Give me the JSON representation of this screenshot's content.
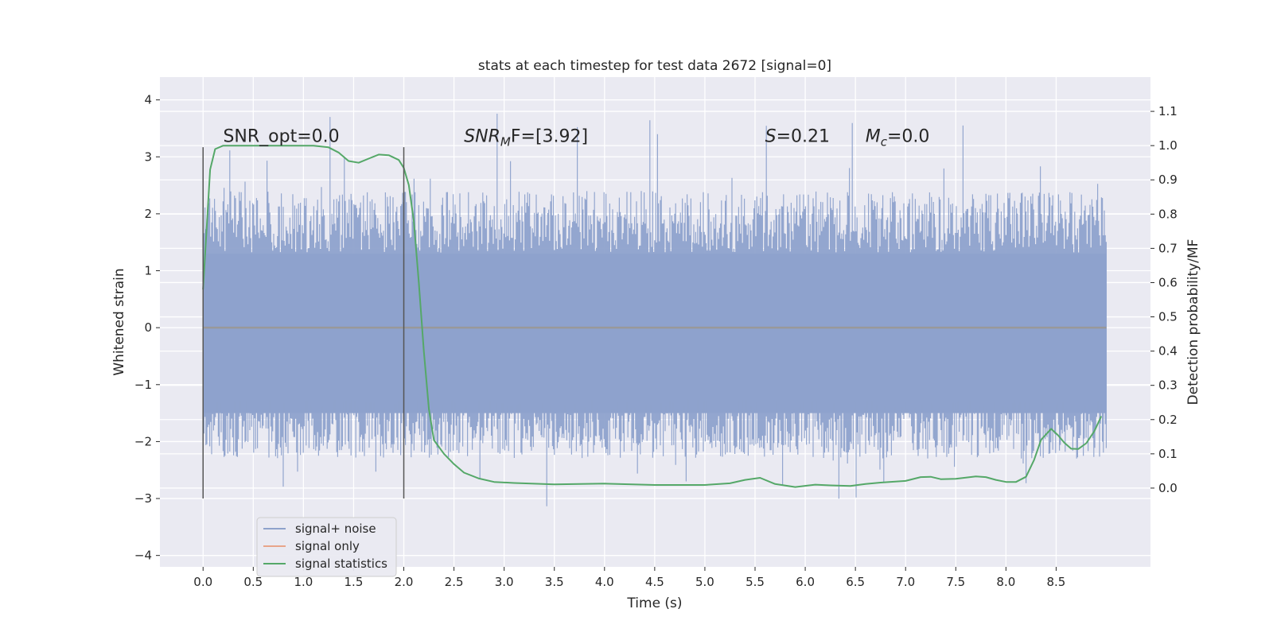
{
  "chart_data": {
    "type": "line",
    "title": "stats at each timestep for test data 2672 [signal=0]",
    "xlabel": "Time (s)",
    "ylabel_left": "Whitened strain",
    "ylabel_right": "Detection probability/MF",
    "xlim": [
      -0.43,
      9.44
    ],
    "ylim_left": [
      -4.2,
      4.4
    ],
    "ylim_right": [
      -0.23,
      1.2
    ],
    "grid": true,
    "x_ticks": [
      0.0,
      0.5,
      1.0,
      1.5,
      2.0,
      2.5,
      3.0,
      3.5,
      4.0,
      4.5,
      5.0,
      5.5,
      6.0,
      6.5,
      7.0,
      7.5,
      8.0,
      8.5
    ],
    "x_tick_labels": [
      "0.0",
      "0.5",
      "1.0",
      "1.5",
      "2.0",
      "2.5",
      "3.0",
      "3.5",
      "4.0",
      "4.5",
      "5.0",
      "5.5",
      "6.0",
      "6.5",
      "7.0",
      "7.5",
      "8.0",
      "8.5"
    ],
    "y_left_ticks": [
      4,
      3,
      2,
      1,
      0,
      -1,
      -2,
      -3,
      -4
    ],
    "y_left_tick_labels": [
      "4",
      "3",
      "2",
      "1",
      "0",
      "−1",
      "−2",
      "−3",
      "−4"
    ],
    "y_right_ticks": [
      1.1,
      1.0,
      0.9,
      0.8,
      0.7,
      0.6,
      0.5,
      0.4,
      0.3,
      0.2,
      0.1,
      0.0
    ],
    "y_right_tick_labels": [
      "1.1",
      "1.0",
      "0.9",
      "0.8",
      "0.7",
      "0.6",
      "0.5",
      "0.4",
      "0.3",
      "0.2",
      "0.1",
      "0.0"
    ],
    "series": [
      {
        "name": "signal+ noise",
        "color": "#8ea2cc",
        "axis": "left",
        "style": "dense noise trace",
        "x_range": [
          0.0,
          9.0
        ],
        "core_range": [
          -1.5,
          1.3
        ],
        "typical_range": [
          -2.3,
          2.4
        ],
        "peak_range": [
          -3.4,
          4.0
        ]
      },
      {
        "name": "signal only",
        "color": "#e8a58a",
        "axis": "left",
        "x": [
          0.0,
          9.0
        ],
        "values": [
          0.0,
          0.0
        ]
      },
      {
        "name": "signal statistics",
        "color": "#55a868",
        "axis": "right",
        "x": [
          0.0,
          0.07,
          0.12,
          0.2,
          0.3,
          0.5,
          0.8,
          1.1,
          1.25,
          1.35,
          1.45,
          1.55,
          1.65,
          1.75,
          1.85,
          1.95,
          2.0,
          2.05,
          2.1,
          2.15,
          2.2,
          2.25,
          2.3,
          2.4,
          2.5,
          2.6,
          2.75,
          2.9,
          3.1,
          3.5,
          4.0,
          4.5,
          5.0,
          5.25,
          5.4,
          5.55,
          5.7,
          5.9,
          6.1,
          6.25,
          6.45,
          6.6,
          6.75,
          7.0,
          7.15,
          7.25,
          7.35,
          7.5,
          7.7,
          7.8,
          7.9,
          8.0,
          8.1,
          8.2,
          8.28,
          8.35,
          8.45,
          8.52,
          8.58,
          8.65,
          8.72,
          8.8,
          8.88,
          8.95
        ],
        "values": [
          0.58,
          0.93,
          0.99,
          1.0,
          1.0,
          1.0,
          1.0,
          1.0,
          0.995,
          0.98,
          0.955,
          0.95,
          0.962,
          0.974,
          0.972,
          0.958,
          0.935,
          0.885,
          0.78,
          0.6,
          0.4,
          0.23,
          0.14,
          0.1,
          0.07,
          0.045,
          0.028,
          0.018,
          0.015,
          0.011,
          0.013,
          0.009,
          0.009,
          0.014,
          0.024,
          0.03,
          0.012,
          0.003,
          0.01,
          0.008,
          0.006,
          0.012,
          0.016,
          0.021,
          0.032,
          0.033,
          0.026,
          0.027,
          0.034,
          0.032,
          0.024,
          0.018,
          0.018,
          0.033,
          0.082,
          0.141,
          0.173,
          0.154,
          0.133,
          0.115,
          0.114,
          0.131,
          0.166,
          0.21
        ]
      }
    ],
    "vertical_lines": [
      {
        "x": 0.0,
        "ymin": -3.0,
        "ymax": 3.17,
        "color": "#555555"
      },
      {
        "x": 2.0,
        "ymin": -3.0,
        "ymax": 3.17,
        "color": "#555555"
      }
    ],
    "annotations": [
      {
        "text": "SNR_opt=0.0",
        "x": 0.2,
        "y": 3.25
      },
      {
        "base": "SNR",
        "sub": "M",
        "rest": "F=[3.92]",
        "x": 2.6,
        "y": 3.25
      },
      {
        "base": "S",
        "rest": "=0.21",
        "x": 5.6,
        "y": 3.25
      },
      {
        "base": "M",
        "sub": "c",
        "rest": "=0.0",
        "x": 6.6,
        "y": 3.25
      }
    ],
    "legend": {
      "placement": "lower-left",
      "entries": [
        "signal+ noise",
        "signal only",
        "signal statistics"
      ],
      "colors": [
        "#8ea2cc",
        "#e8a58a",
        "#55a868"
      ]
    }
  }
}
